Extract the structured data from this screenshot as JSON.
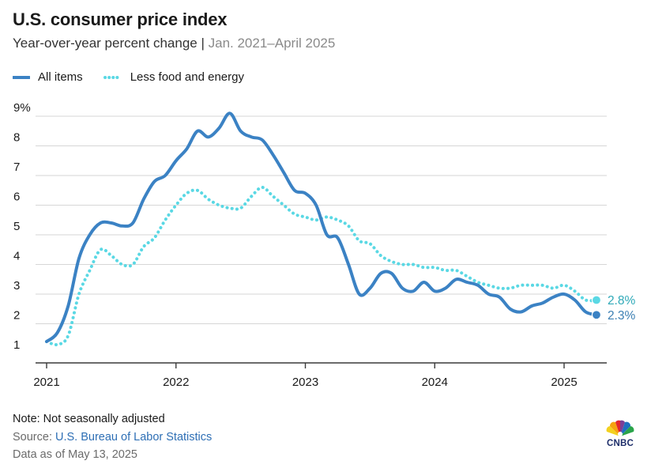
{
  "header": {
    "title": "U.S. consumer price index",
    "subtitle_main": "Year-over-year percent change",
    "subtitle_sep": "|",
    "subtitle_range": "Jan. 2021–April 2025"
  },
  "colors": {
    "all_items": "#3b82c4",
    "core": "#5ad8e4",
    "grid": "#d6d6d6",
    "axis": "#3a3a3a",
    "label_all": "#3b7fb3",
    "label_core": "#2ea9b8"
  },
  "footer": {
    "note": "Note: Not seasonally adjusted",
    "source_prefix": "Source: ",
    "source_link": "U.S. Bureau of Labor Statistics",
    "as_of": "Data as of May 13, 2025"
  },
  "logo": {
    "icon": "nbc-peacock-icon",
    "text": "CNBC"
  },
  "chart_data": {
    "type": "line",
    "x_start": "2021-01",
    "x_end": "2025-04",
    "x_ticks": [
      "2021",
      "2022",
      "2023",
      "2024",
      "2025"
    ],
    "y_ticks": [
      "9%",
      "8",
      "7",
      "6",
      "5",
      "4",
      "3",
      "2",
      "1"
    ],
    "ylim": [
      1,
      9
    ],
    "grid": true,
    "legend": "top-left",
    "series": [
      {
        "name": "All items",
        "style": "solid",
        "end_label": "2.3%",
        "x": [
          "2021-01",
          "2021-02",
          "2021-03",
          "2021-04",
          "2021-05",
          "2021-06",
          "2021-07",
          "2021-08",
          "2021-09",
          "2021-10",
          "2021-11",
          "2021-12",
          "2022-01",
          "2022-02",
          "2022-03",
          "2022-04",
          "2022-05",
          "2022-06",
          "2022-07",
          "2022-08",
          "2022-09",
          "2022-10",
          "2022-11",
          "2022-12",
          "2023-01",
          "2023-02",
          "2023-03",
          "2023-04",
          "2023-05",
          "2023-06",
          "2023-07",
          "2023-08",
          "2023-09",
          "2023-10",
          "2023-11",
          "2023-12",
          "2024-01",
          "2024-02",
          "2024-03",
          "2024-04",
          "2024-05",
          "2024-06",
          "2024-07",
          "2024-08",
          "2024-09",
          "2024-10",
          "2024-11",
          "2024-12",
          "2025-01",
          "2025-02",
          "2025-03",
          "2025-04"
        ],
        "values": [
          1.4,
          1.7,
          2.6,
          4.2,
          5.0,
          5.4,
          5.4,
          5.3,
          5.4,
          6.2,
          6.8,
          7.0,
          7.5,
          7.9,
          8.5,
          8.3,
          8.6,
          9.1,
          8.5,
          8.3,
          8.2,
          7.7,
          7.1,
          6.5,
          6.4,
          6.0,
          5.0,
          4.9,
          4.0,
          3.0,
          3.2,
          3.7,
          3.7,
          3.2,
          3.1,
          3.4,
          3.1,
          3.2,
          3.5,
          3.4,
          3.3,
          3.0,
          2.9,
          2.5,
          2.4,
          2.6,
          2.7,
          2.9,
          3.0,
          2.8,
          2.4,
          2.3
        ]
      },
      {
        "name": "Less food and energy",
        "style": "dotted",
        "end_label": "2.8%",
        "x": [
          "2021-01",
          "2021-02",
          "2021-03",
          "2021-04",
          "2021-05",
          "2021-06",
          "2021-07",
          "2021-08",
          "2021-09",
          "2021-10",
          "2021-11",
          "2021-12",
          "2022-01",
          "2022-02",
          "2022-03",
          "2022-04",
          "2022-05",
          "2022-06",
          "2022-07",
          "2022-08",
          "2022-09",
          "2022-10",
          "2022-11",
          "2022-12",
          "2023-01",
          "2023-02",
          "2023-03",
          "2023-04",
          "2023-05",
          "2023-06",
          "2023-07",
          "2023-08",
          "2023-09",
          "2023-10",
          "2023-11",
          "2023-12",
          "2024-01",
          "2024-02",
          "2024-03",
          "2024-04",
          "2024-05",
          "2024-06",
          "2024-07",
          "2024-08",
          "2024-09",
          "2024-10",
          "2024-11",
          "2024-12",
          "2025-01",
          "2025-02",
          "2025-03",
          "2025-04"
        ],
        "values": [
          1.4,
          1.3,
          1.6,
          3.0,
          3.8,
          4.5,
          4.3,
          4.0,
          4.0,
          4.6,
          4.9,
          5.5,
          6.0,
          6.4,
          6.5,
          6.2,
          6.0,
          5.9,
          5.9,
          6.3,
          6.6,
          6.3,
          6.0,
          5.7,
          5.6,
          5.5,
          5.6,
          5.5,
          5.3,
          4.8,
          4.7,
          4.3,
          4.1,
          4.0,
          4.0,
          3.9,
          3.9,
          3.8,
          3.8,
          3.6,
          3.4,
          3.3,
          3.2,
          3.2,
          3.3,
          3.3,
          3.3,
          3.2,
          3.3,
          3.1,
          2.8,
          2.8
        ]
      }
    ]
  }
}
